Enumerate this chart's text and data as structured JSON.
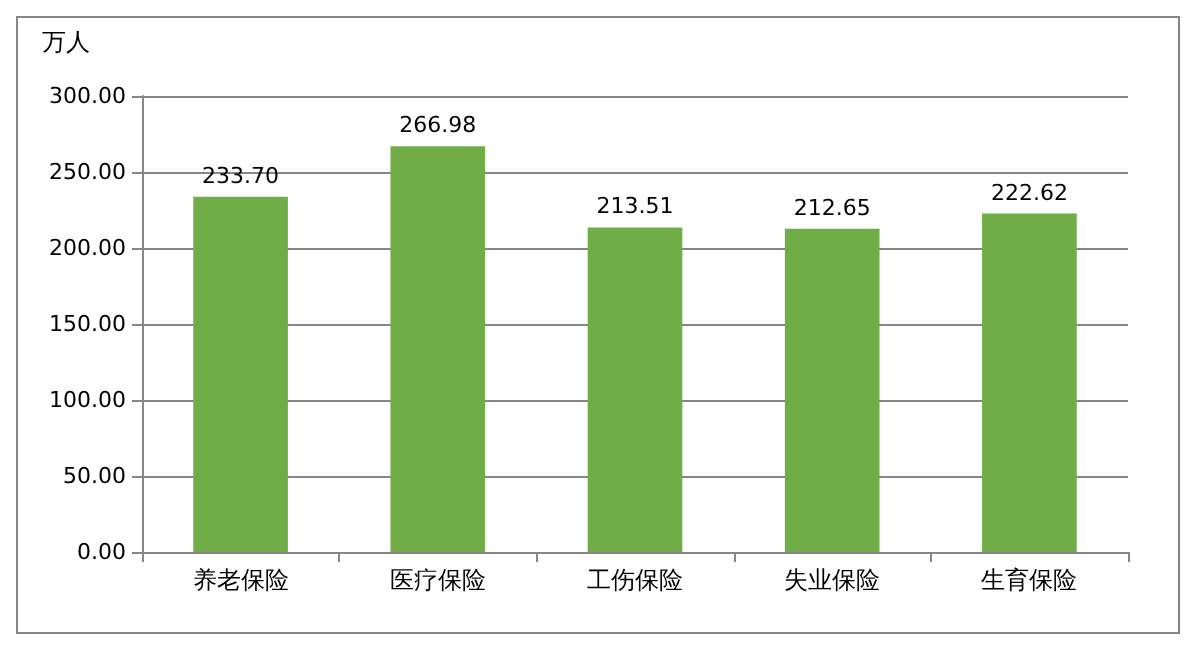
{
  "chart_data": {
    "type": "bar",
    "ylabel": "万人",
    "categories": [
      "养老保险",
      "医疗保险",
      "工伤保险",
      "失业保险",
      "生育保险"
    ],
    "values": [
      233.7,
      266.98,
      213.51,
      212.65,
      222.62
    ],
    "value_labels": [
      "233.70",
      "266.98",
      "213.51",
      "212.65",
      "222.62"
    ],
    "color": "#70ad47",
    "ylim": [
      0,
      300
    ],
    "yticks": [
      {
        "value": 0,
        "label": "0.00"
      },
      {
        "value": 50,
        "label": "50.00"
      },
      {
        "value": 100,
        "label": "100.00"
      },
      {
        "value": 150,
        "label": "150.00"
      },
      {
        "value": 200,
        "label": "200.00"
      },
      {
        "value": 250,
        "label": "250.00"
      },
      {
        "value": 300,
        "label": "300.00"
      }
    ],
    "grid": "y"
  }
}
